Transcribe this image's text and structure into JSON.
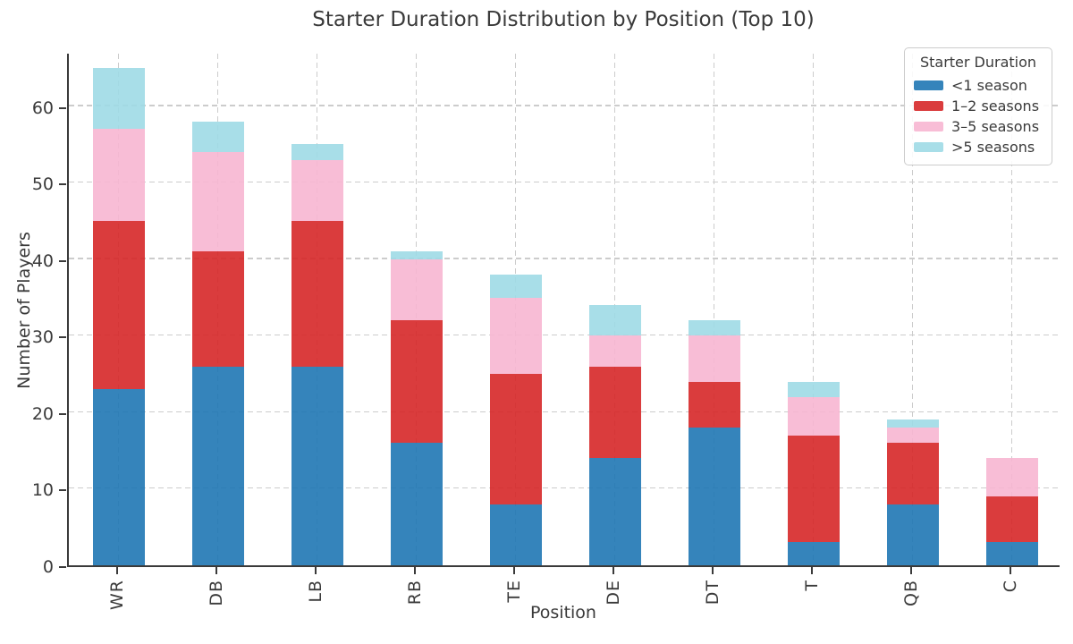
{
  "chart_data": {
    "type": "bar",
    "stacked": true,
    "title": "Starter Duration Distribution by Position (Top 10)",
    "xlabel": "Position",
    "ylabel": "Number of Players",
    "categories": [
      "WR",
      "DB",
      "LB",
      "RB",
      "TE",
      "DE",
      "DT",
      "T",
      "QB",
      "C"
    ],
    "series": [
      {
        "name": "<1 season",
        "color": "#1f77b4",
        "values": [
          23,
          26,
          26,
          16,
          8,
          14,
          18,
          3,
          8,
          3
        ]
      },
      {
        "name": "1–2 seasons",
        "color": "#d62728",
        "values": [
          22,
          15,
          19,
          16,
          17,
          12,
          6,
          14,
          8,
          6
        ]
      },
      {
        "name": "3–5 seasons",
        "color": "#f7b6d2",
        "values": [
          12,
          13,
          8,
          8,
          10,
          4,
          6,
          5,
          2,
          5
        ]
      },
      {
        "name": ">5 seasons",
        "color": "#9edae5",
        "values": [
          8,
          4,
          2,
          1,
          3,
          4,
          2,
          2,
          1,
          0
        ]
      }
    ],
    "yticks": [
      0,
      10,
      20,
      30,
      40,
      50,
      60
    ],
    "ylim": [
      0,
      66.8
    ],
    "grid": "dashed, both axes",
    "legend_title": "Starter Duration",
    "legend_position": "upper right"
  }
}
